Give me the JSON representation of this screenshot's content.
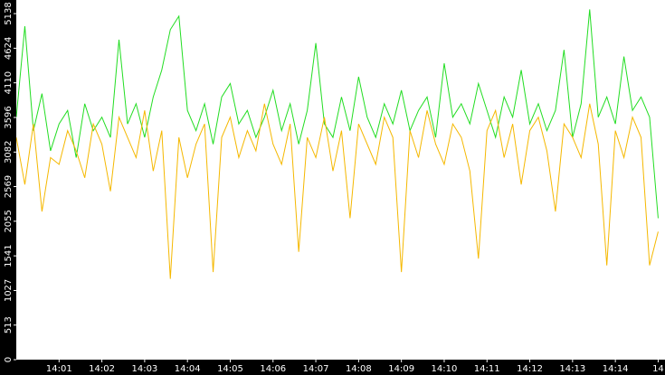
{
  "chart_data": {
    "type": "line",
    "x": [
      0,
      0.2,
      0.4,
      0.6,
      0.8,
      1,
      1.2,
      1.4,
      1.6,
      1.8,
      2,
      2.2,
      2.4,
      2.6,
      2.8,
      3,
      3.2,
      3.4,
      3.6,
      3.8,
      4,
      4.2,
      4.4,
      4.6,
      4.8,
      5,
      5.2,
      5.4,
      5.6,
      5.8,
      6,
      6.2,
      6.4,
      6.6,
      6.8,
      7,
      7.2,
      7.4,
      7.6,
      7.8,
      8,
      8.2,
      8.4,
      8.6,
      8.8,
      9,
      9.2,
      9.4,
      9.6,
      9.8,
      10,
      10.2,
      10.4,
      10.6,
      10.8,
      11,
      11.2,
      11.4,
      11.6,
      11.8,
      12,
      12.2,
      12.4,
      12.6,
      12.8,
      13,
      13.2,
      13.4,
      13.6,
      13.8,
      14,
      14.2,
      14.4,
      14.6,
      14.8,
      15
    ],
    "series": [
      {
        "color": "#22dd22",
        "values": [
          3600,
          4950,
          3400,
          3950,
          3100,
          3500,
          3700,
          3000,
          3800,
          3400,
          3600,
          3300,
          4750,
          3500,
          3800,
          3300,
          3900,
          4300,
          4900,
          5100,
          3700,
          3400,
          3800,
          3200,
          3900,
          4100,
          3500,
          3700,
          3300,
          3600,
          4000,
          3400,
          3800,
          3200,
          3700,
          4700,
          3500,
          3300,
          3900,
          3400,
          4200,
          3600,
          3300,
          3800,
          3500,
          4000,
          3400,
          3700,
          3900,
          3300,
          4400,
          3600,
          3800,
          3500,
          4100,
          3700,
          3300,
          3900,
          3600,
          4300,
          3500,
          3800,
          3400,
          3700,
          4600,
          3300,
          3800,
          5200,
          3600,
          3900,
          3500,
          4500,
          3700,
          3900,
          3600,
          2100
        ]
      },
      {
        "color": "#f5b800",
        "values": [
          3300,
          2600,
          3500,
          2200,
          3000,
          2900,
          3400,
          3100,
          2700,
          3500,
          3200,
          2500,
          3600,
          3300,
          3000,
          3700,
          2800,
          3400,
          1200,
          3300,
          2700,
          3200,
          3500,
          1300,
          3300,
          3600,
          3000,
          3400,
          3100,
          3800,
          3200,
          2900,
          3500,
          1600,
          3300,
          3000,
          3600,
          2800,
          3400,
          2100,
          3500,
          3200,
          2900,
          3600,
          3300,
          1300,
          3400,
          3000,
          3700,
          3200,
          2900,
          3500,
          3300,
          2800,
          1500,
          3400,
          3700,
          3000,
          3500,
          2600,
          3400,
          3600,
          3100,
          2200,
          3500,
          3300,
          3000,
          3800,
          3200,
          1400,
          3400,
          3000,
          3600,
          3300,
          1400,
          1900
        ]
      }
    ],
    "xlim": [
      0,
      15.16
    ],
    "xticks": [
      {
        "value": 1,
        "label": "14:01"
      },
      {
        "value": 2,
        "label": "14:02"
      },
      {
        "value": 3,
        "label": "14:03"
      },
      {
        "value": 4,
        "label": "14:04"
      },
      {
        "value": 5,
        "label": "14:05"
      },
      {
        "value": 6,
        "label": "14:06"
      },
      {
        "value": 7,
        "label": "14:07"
      },
      {
        "value": 8,
        "label": "14:08"
      },
      {
        "value": 9,
        "label": "14:09"
      },
      {
        "value": 10,
        "label": "14:10"
      },
      {
        "value": 11,
        "label": "14:11"
      },
      {
        "value": 12,
        "label": "14:12"
      },
      {
        "value": 13,
        "label": "14:13"
      },
      {
        "value": 14,
        "label": "14:14"
      },
      {
        "value": 15,
        "label": "14"
      }
    ],
    "ylim": [
      0,
      5340
    ],
    "yticks": [
      0,
      513,
      1027,
      1541,
      2055,
      2569,
      3082,
      3596,
      4110,
      4624,
      5138
    ]
  }
}
